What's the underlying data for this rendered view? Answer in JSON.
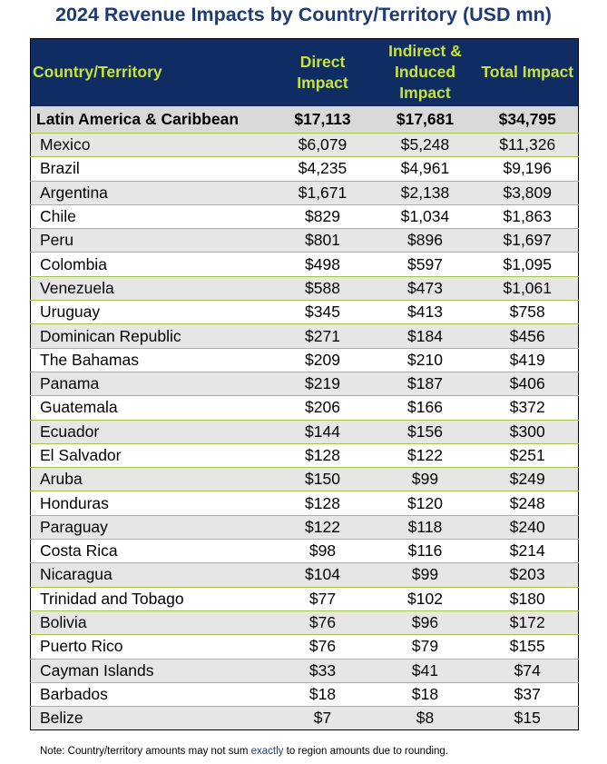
{
  "title": "2024 Revenue Impacts by Country/Territory (USD mn)",
  "table": {
    "headers": {
      "country": "Country/Territory",
      "direct": "Direct Impact",
      "indirect": "Indirect & Induced Impact",
      "total": "Total Impact"
    },
    "region": {
      "name": "Latin America & Caribbean",
      "direct": "$17,113",
      "indirect": "$17,681",
      "total": "$34,795"
    },
    "rows": [
      {
        "name": "Mexico",
        "direct": "$6,079",
        "indirect": "$5,248",
        "total": "$11,326"
      },
      {
        "name": "Brazil",
        "direct": "$4,235",
        "indirect": "$4,961",
        "total": "$9,196"
      },
      {
        "name": "Argentina",
        "direct": "$1,671",
        "indirect": "$2,138",
        "total": "$3,809"
      },
      {
        "name": "Chile",
        "direct": "$829",
        "indirect": "$1,034",
        "total": "$1,863"
      },
      {
        "name": "Peru",
        "direct": "$801",
        "indirect": "$896",
        "total": "$1,697"
      },
      {
        "name": "Colombia",
        "direct": "$498",
        "indirect": "$597",
        "total": "$1,095"
      },
      {
        "name": "Venezuela",
        "direct": "$588",
        "indirect": "$473",
        "total": "$1,061"
      },
      {
        "name": "Uruguay",
        "direct": "$345",
        "indirect": "$413",
        "total": "$758"
      },
      {
        "name": "Dominican Republic",
        "direct": "$271",
        "indirect": "$184",
        "total": "$456"
      },
      {
        "name": "The Bahamas",
        "direct": "$209",
        "indirect": "$210",
        "total": "$419"
      },
      {
        "name": "Panama",
        "direct": "$219",
        "indirect": "$187",
        "total": "$406"
      },
      {
        "name": "Guatemala",
        "direct": "$206",
        "indirect": "$166",
        "total": "$372"
      },
      {
        "name": "Ecuador",
        "direct": "$144",
        "indirect": "$156",
        "total": "$300"
      },
      {
        "name": "El Salvador",
        "direct": "$128",
        "indirect": "$122",
        "total": "$251"
      },
      {
        "name": "Aruba",
        "direct": "$150",
        "indirect": "$99",
        "total": "$249"
      },
      {
        "name": "Honduras",
        "direct": "$128",
        "indirect": "$120",
        "total": "$248"
      },
      {
        "name": "Paraguay",
        "direct": "$122",
        "indirect": "$118",
        "total": "$240"
      },
      {
        "name": "Costa Rica",
        "direct": "$98",
        "indirect": "$116",
        "total": "$214"
      },
      {
        "name": "Nicaragua",
        "direct": "$104",
        "indirect": "$99",
        "total": "$203"
      },
      {
        "name": "Trinidad and Tobago",
        "direct": "$77",
        "indirect": "$102",
        "total": "$180"
      },
      {
        "name": "Bolivia",
        "direct": "$76",
        "indirect": "$96",
        "total": "$172"
      },
      {
        "name": "Puerto Rico",
        "direct": "$76",
        "indirect": "$79",
        "total": "$155"
      },
      {
        "name": "Cayman Islands",
        "direct": "$33",
        "indirect": "$41",
        "total": "$74"
      },
      {
        "name": "Barbados",
        "direct": "$18",
        "indirect": "$18",
        "total": "$37"
      },
      {
        "name": "Belize",
        "direct": "$7",
        "indirect": "$8",
        "total": "$15"
      }
    ]
  },
  "note": {
    "prefix": "Note: Country/territory amounts may not sum ",
    "highlight": "exactly",
    "suffix": " to region amounts due to rounding."
  },
  "colors": {
    "title": "#1f3b73",
    "header_bg": "#0f2d63",
    "header_text": "#c7e33b",
    "row_stripe": "#e6e6e6",
    "region_bg": "#d9d9d9",
    "row_divider": "#a6c24a"
  }
}
